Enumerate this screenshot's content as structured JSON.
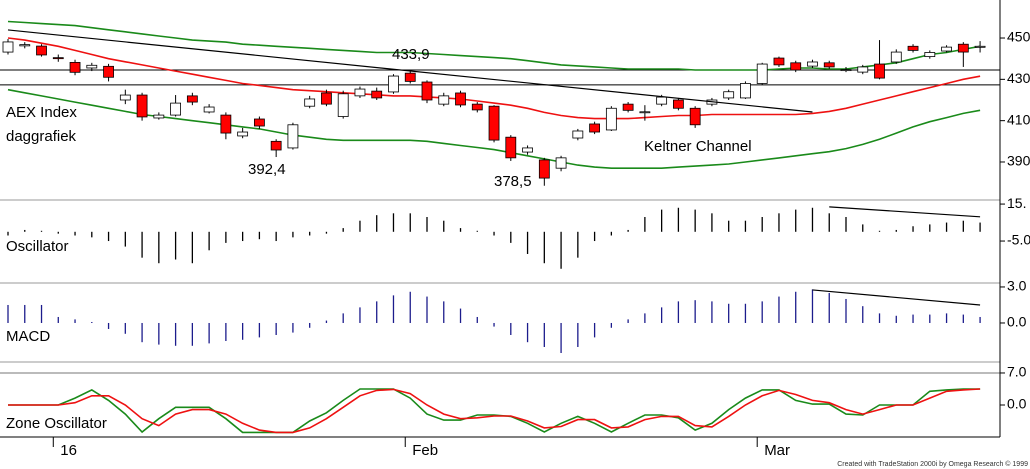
{
  "chart_data": [
    {
      "type": "candlestick",
      "title": "AEX Index",
      "subtitle": "daggrafiek",
      "annotations": [
        "433,9",
        "392,4",
        "378,5",
        "Keltner Channel"
      ],
      "footer": "Created with TradeStation 2000i by Omega Research © 1999",
      "categories": [
        null,
        null,
        null,
        "16",
        null,
        null,
        null,
        null,
        null,
        null,
        null,
        null,
        null,
        null,
        null,
        null,
        null,
        null,
        null,
        null,
        null,
        null,
        null,
        null,
        "Feb",
        null,
        null,
        null,
        null,
        null,
        null,
        null,
        null,
        null,
        null,
        null,
        null,
        null,
        null,
        null,
        null,
        null,
        null,
        null,
        null,
        "Mar",
        null,
        null,
        null,
        null,
        null,
        null,
        null,
        null,
        null,
        null,
        null,
        null,
        null
      ],
      "open": [
        443.2,
        446.2,
        446.1,
        440.5,
        438.2,
        435.5,
        436.3,
        420,
        422.4,
        411.3,
        412.7,
        422,
        414.2,
        412.7,
        402.6,
        410.8,
        400,
        396.8,
        417,
        423.4,
        412,
        422,
        424.3,
        423.9,
        433,
        428.7,
        418,
        423.4,
        418,
        417,
        402,
        394.8,
        391,
        387,
        401.6,
        408.4,
        405.5,
        418,
        414,
        418,
        420,
        416,
        418,
        421,
        421,
        428,
        440.3,
        438,
        436.4,
        438,
        434.3,
        433.5,
        437.4,
        438.4,
        446,
        441,
        443.7,
        447,
        445.5
      ],
      "high": [
        449.5,
        448,
        447,
        442,
        439.5,
        438,
        437.5,
        425,
        423.5,
        414,
        422.4,
        423.5,
        418,
        414,
        406.5,
        412,
        401,
        409,
        422,
        425,
        424.5,
        426.5,
        426,
        432.5,
        433.9,
        429.5,
        423.5,
        424.5,
        419,
        417.5,
        403,
        398,
        392,
        393,
        406,
        409.5,
        417,
        419,
        417.5,
        422.5,
        421,
        417,
        421,
        425,
        429,
        438,
        441,
        439,
        439.5,
        439,
        436,
        437,
        449,
        444.5,
        447,
        444,
        446.5,
        448,
        448.5
      ],
      "low": [
        442,
        445,
        441,
        438.5,
        432,
        434,
        429,
        418,
        410,
        410.5,
        412,
        417.5,
        413.5,
        401,
        401.5,
        406,
        392.4,
        396,
        416,
        417,
        411,
        421,
        420,
        423,
        428,
        418.5,
        417,
        416.5,
        414,
        399.5,
        390.5,
        393.5,
        378.5,
        385.5,
        400.5,
        403.5,
        405,
        414,
        410,
        417,
        415,
        406.5,
        417,
        420,
        420.5,
        427.5,
        436,
        433.5,
        435.5,
        435,
        433.5,
        432.5,
        430,
        437.5,
        443,
        440,
        443,
        436,
        443
      ],
      "close": [
        448.1,
        446.8,
        441.8,
        440,
        433.4,
        436.8,
        431,
        422.4,
        411.8,
        412.7,
        418.5,
        419,
        416.6,
        404,
        404.5,
        407.4,
        395.8,
        408,
        420.5,
        418,
        423,
        425.3,
        421,
        431.6,
        429,
        420,
        422,
        417.6,
        415.2,
        400.6,
        392,
        396.8,
        382.2,
        392,
        405,
        404.5,
        416,
        415,
        414.3,
        421.4,
        416,
        408,
        420,
        424,
        428,
        437.4,
        437,
        434.5,
        438.4,
        436,
        434.7,
        436,
        430.6,
        443.2,
        444,
        443,
        445.6,
        443.2,
        446
      ],
      "up_color": "#ffffff",
      "down_color": "#ff0000",
      "series": [
        {
          "color": "#1a8a1a",
          "values": [
            458,
            457.5,
            457,
            456.5,
            456,
            455,
            454,
            453,
            452,
            451,
            450,
            449,
            448.5,
            448,
            447,
            446.5,
            446,
            445.5,
            445,
            444.5,
            444,
            443.5,
            443,
            443,
            443,
            442.5,
            442,
            441.5,
            441,
            440.5,
            440,
            439,
            438,
            437,
            436.5,
            436,
            435.5,
            435,
            435,
            435,
            435,
            434.5,
            434.5,
            434.5,
            434.5,
            434.5,
            435,
            435.5,
            435.5,
            435,
            435,
            436,
            437,
            438,
            440,
            442,
            443,
            444.5,
            446
          ]
        },
        {
          "color": "#ee1111",
          "values": [
            450,
            449,
            447.5,
            446,
            444,
            442,
            440,
            438.5,
            437,
            435.5,
            434,
            432.5,
            431,
            429.5,
            428,
            427,
            426,
            425,
            424.5,
            424,
            423.5,
            423,
            422.5,
            422,
            422,
            421.5,
            421,
            420.5,
            419.5,
            418.5,
            417.5,
            416,
            414,
            412.5,
            411.5,
            411,
            411,
            411,
            411.5,
            412,
            412.5,
            412.5,
            413,
            413,
            413,
            413,
            413,
            413,
            413.5,
            414.5,
            416,
            418,
            420,
            422,
            424,
            426,
            428,
            430,
            431.5
          ]
        },
        {
          "color": "#1a8a1a",
          "values": [
            425,
            423.5,
            422,
            420.5,
            419,
            417.5,
            416,
            414.5,
            413,
            412,
            411,
            410,
            409,
            408,
            407,
            406,
            404.5,
            403,
            402,
            401,
            400.5,
            400.5,
            400.5,
            400.5,
            400.5,
            400,
            399,
            398,
            397,
            396,
            394.5,
            393,
            391.5,
            390,
            388.5,
            387.5,
            387,
            387,
            387,
            387,
            387.5,
            388,
            388.5,
            389,
            390,
            391,
            392,
            393,
            394,
            395,
            396.5,
            398.5,
            401,
            404,
            407,
            409.5,
            411.5,
            413.5,
            415
          ]
        }
      ],
      "hlines": [
        434.5,
        427.3
      ],
      "trendline": {
        "from": [
          0,
          453.9
        ],
        "to": [
          48,
          414.2
        ]
      },
      "ylim": [
        371.6,
        468.4
      ],
      "yticks": [
        390,
        410,
        430,
        450
      ]
    },
    {
      "type": "bar",
      "title": "Oscillator",
      "color": "#000000",
      "values": [
        -2,
        1,
        0,
        -1,
        -2,
        -3,
        -5,
        -8,
        -14,
        -17,
        -15,
        -17,
        -10,
        -6,
        -5,
        -4,
        -5,
        -3,
        -2,
        -1,
        2,
        6,
        9,
        10,
        10,
        8,
        6,
        2,
        0,
        -2,
        -6,
        -12,
        -17,
        -20,
        -14,
        -5,
        -2,
        1,
        8,
        12,
        13,
        12,
        10,
        6,
        6,
        8,
        10,
        12,
        13,
        10,
        8,
        4,
        0,
        1,
        3,
        4,
        5,
        6,
        5
      ],
      "trendline": {
        "from": [
          49,
          13.5
        ],
        "to": [
          58,
          8.1
        ]
      },
      "ylim": [
        -27.7,
        17.2
      ],
      "yticks": [
        {
          "value": 15,
          "label": "15."
        },
        {
          "value": -5,
          "label": "-5.0"
        }
      ]
    },
    {
      "type": "bar",
      "title": "MACD",
      "color": "#1c1c8c",
      "values": [
        1.5,
        1.5,
        1.5,
        0.5,
        0.3,
        0,
        -0.5,
        -0.9,
        -1.6,
        -1.8,
        -1.9,
        -1.9,
        -1.7,
        -1.5,
        -1.4,
        -1.2,
        -1,
        -0.8,
        -0.4,
        0.2,
        0.8,
        1.3,
        1.8,
        2.3,
        2.6,
        2.2,
        1.8,
        1.2,
        0.5,
        -0.3,
        -1,
        -1.6,
        -2,
        -2.5,
        -2,
        -1.2,
        -0.4,
        0.3,
        0.8,
        1.3,
        1.8,
        1.9,
        1.8,
        1.6,
        1.6,
        1.8,
        2.2,
        2.6,
        2.8,
        2.5,
        2,
        1.4,
        0.8,
        0.6,
        0.7,
        0.7,
        0.8,
        0.7,
        0.5
      ],
      "trendline": {
        "from": [
          48,
          2.75
        ],
        "to": [
          58,
          1.5
        ]
      },
      "ylim": [
        -3.25,
        3.33
      ],
      "yticks": [
        {
          "value": 3,
          "label": "3.0"
        },
        {
          "value": 0,
          "label": "0.0"
        }
      ]
    },
    {
      "type": "line",
      "title": "Zone Oscillator",
      "series": [
        {
          "color": "#1a8a1a",
          "values": [
            0,
            0,
            0,
            0,
            1.5,
            3.3,
            1,
            -2,
            -5.9,
            -3,
            -0.5,
            -0.5,
            -0.5,
            -3,
            -6,
            -6,
            -6,
            -6,
            -3.5,
            -1.7,
            1,
            3.5,
            3.5,
            3.5,
            1.5,
            -2,
            -3.3,
            -3.3,
            -2.2,
            -2.2,
            -2.5,
            -4,
            -5.9,
            -4,
            -2.5,
            -4,
            -5.9,
            -4,
            -2.2,
            -2.2,
            -2.8,
            -5.5,
            -4,
            -1,
            1.5,
            3.3,
            3.3,
            1,
            0.2,
            0.2,
            -2,
            -2.2,
            0,
            0,
            0,
            3,
            3.3,
            3.5,
            3.5
          ]
        },
        {
          "color": "#ee1111",
          "values": [
            0,
            0,
            0,
            0,
            0.5,
            2,
            2,
            0,
            -3,
            -4.5,
            -2,
            -1,
            -1,
            -2,
            -4,
            -5.5,
            -6,
            -6,
            -5,
            -3,
            -0.5,
            2,
            3.2,
            3.4,
            2.5,
            0,
            -2,
            -3,
            -2.8,
            -2.4,
            -2.4,
            -3.5,
            -5,
            -4.7,
            -3.2,
            -3.2,
            -5,
            -4.8,
            -3.2,
            -2.5,
            -2.5,
            -4.5,
            -4.8,
            -2.5,
            0,
            2,
            3.2,
            2.3,
            1,
            0.5,
            -1,
            -2,
            -1,
            0,
            0,
            1.5,
            3,
            3.3,
            3.5
          ]
        }
      ],
      "hlines": [
        7
      ],
      "ylim": [
        -7.0,
        9.4
      ],
      "yticks": [
        {
          "value": 7,
          "label": "7.0"
        },
        {
          "value": 0,
          "label": "0.0"
        }
      ]
    }
  ]
}
